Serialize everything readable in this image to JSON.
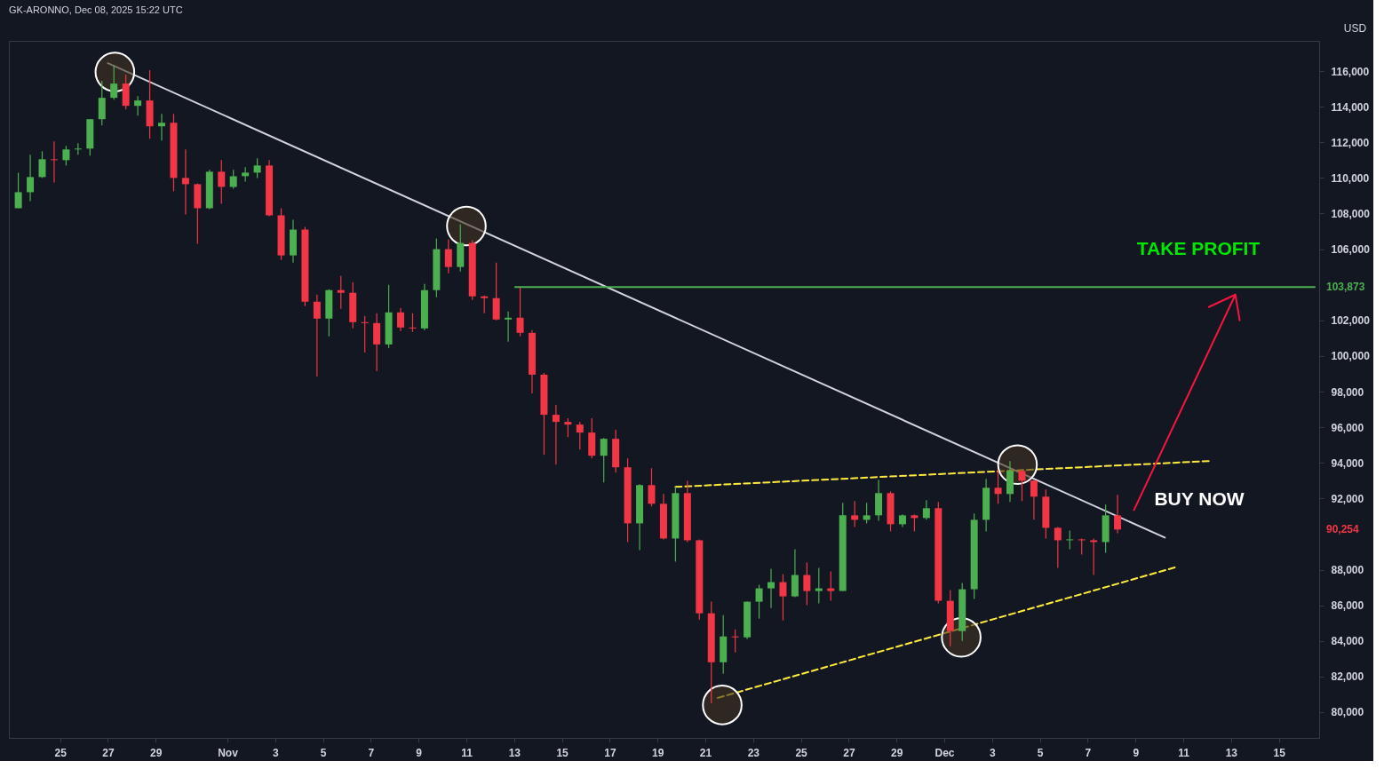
{
  "chart_data": {
    "type": "candlestick",
    "title": "GK-ARONNO, Dec 08, 2025 15:22 UTC",
    "ylabel": "USD",
    "colors": [
      "#4caf50",
      "#4caf50",
      "#4caf50",
      "#f23645",
      "#4caf50",
      "#4caf50",
      "#4caf50",
      "#4caf50",
      "#4caf50",
      "#f23645",
      "#4caf50",
      "#f23645",
      "#4caf50",
      "#f23645",
      "#f23645",
      "#f23645",
      "#4caf50",
      "#f23645",
      "#4caf50",
      "#4caf50",
      "#4caf50",
      "#f23645",
      "#f23645",
      "#4caf50",
      "#f23645",
      "#f23645",
      "#4caf50",
      "#f23645",
      "#f23645",
      "#f23645",
      "#f23645",
      "#4caf50",
      "#f23645",
      "#f23645",
      "#4caf50",
      "#4caf50",
      "#f23645",
      "#4caf50",
      "#f23645",
      "#f23645",
      "#f23645",
      "#4caf50",
      "#f23645",
      "#f23645",
      "#f23645",
      "#f23645",
      "#f23645",
      "#f23645",
      "#f23645",
      "#4caf50",
      "#f23645",
      "#f23645",
      "#4caf50",
      "#f23645",
      "#f23645",
      "#4caf50",
      "#f23645",
      "#f23645",
      "#f23645",
      "#4caf50",
      "#f23645",
      "#4caf50",
      "#4caf50",
      "#4caf50",
      "#f23645",
      "#4caf50",
      "#f23645",
      "#4caf50",
      "#f23645",
      "#4caf50",
      "#f23645",
      "#4caf50",
      "#4caf50",
      "#f23645",
      "#4caf50",
      "#f23645",
      "#4caf50",
      "#f23645",
      "#f23645",
      "#4caf50",
      "#4caf50",
      "#4caf50",
      "#f23645",
      "#4caf50",
      "#f23645",
      "#f23645",
      "#f23645",
      "#f23645",
      "#4caf50",
      "#f23645",
      "#f23645",
      "#4caf50",
      "#f23645"
    ],
    "x": [
      "2025-10-23T06:00",
      "2025-10-23T18:00",
      "2025-10-24T06:00",
      "2025-10-24T18:00",
      "2025-10-25T06:00",
      "2025-10-25T18:00",
      "2025-10-26T06:00",
      "2025-10-26T18:00",
      "2025-10-27T06:00",
      "2025-10-27T18:00",
      "2025-10-28T06:00",
      "2025-10-28T18:00",
      "2025-10-29T06:00",
      "2025-10-29T18:00",
      "2025-10-30T06:00",
      "2025-10-30T18:00",
      "2025-10-31T06:00",
      "2025-10-31T18:00",
      "2025-11-01T06:00",
      "2025-11-01T18:00",
      "2025-11-02T06:00",
      "2025-11-02T18:00",
      "2025-11-03T06:00",
      "2025-11-03T18:00",
      "2025-11-04T06:00",
      "2025-11-04T18:00",
      "2025-11-05T06:00",
      "2025-11-05T18:00",
      "2025-11-06T06:00",
      "2025-11-06T18:00",
      "2025-11-07T06:00",
      "2025-11-07T18:00",
      "2025-11-08T06:00",
      "2025-11-08T18:00",
      "2025-11-09T06:00",
      "2025-11-09T18:00",
      "2025-11-10T06:00",
      "2025-11-10T18:00",
      "2025-11-11T06:00",
      "2025-11-11T18:00",
      "2025-11-12T06:00",
      "2025-11-12T18:00",
      "2025-11-13T06:00",
      "2025-11-13T18:00",
      "2025-11-14T06:00",
      "2025-11-14T18:00",
      "2025-11-15T06:00",
      "2025-11-15T18:00",
      "2025-11-16T06:00",
      "2025-11-16T18:00",
      "2025-11-17T06:00",
      "2025-11-17T18:00",
      "2025-11-18T06:00",
      "2025-11-18T18:00",
      "2025-11-19T06:00",
      "2025-11-19T18:00",
      "2025-11-20T06:00",
      "2025-11-20T18:00",
      "2025-11-21T06:00",
      "2025-11-21T18:00",
      "2025-11-22T06:00",
      "2025-11-22T18:00",
      "2025-11-23T06:00",
      "2025-11-23T18:00",
      "2025-11-24T06:00",
      "2025-11-24T18:00",
      "2025-11-25T06:00",
      "2025-11-25T18:00",
      "2025-11-26T06:00",
      "2025-11-26T18:00",
      "2025-11-27T06:00",
      "2025-11-27T18:00",
      "2025-11-28T06:00",
      "2025-11-28T18:00",
      "2025-11-29T06:00",
      "2025-11-29T18:00",
      "2025-11-30T06:00",
      "2025-11-30T18:00",
      "2025-12-01T06:00",
      "2025-12-01T18:00",
      "2025-12-02T06:00",
      "2025-12-02T18:00",
      "2025-12-03T06:00",
      "2025-12-03T18:00",
      "2025-12-04T06:00",
      "2025-12-04T18:00",
      "2025-12-05T06:00",
      "2025-12-05T18:00",
      "2025-12-06T06:00",
      "2025-12-06T18:00",
      "2025-12-07T06:00",
      "2025-12-07T18:00",
      "2025-12-08T06:00"
    ],
    "ohlc": [
      [
        108300,
        110300,
        108300,
        109200
      ],
      [
        109200,
        111300,
        108700,
        110050
      ],
      [
        110050,
        111500,
        110000,
        111050
      ],
      [
        111050,
        112050,
        109750,
        111000
      ],
      [
        111000,
        111800,
        110700,
        111600
      ],
      [
        111600,
        111950,
        111300,
        111650
      ],
      [
        111650,
        113300,
        111250,
        113300
      ],
      [
        113300,
        115450,
        112950,
        114500
      ],
      [
        114500,
        116300,
        114400,
        115300
      ],
      [
        115300,
        115800,
        113850,
        114050
      ],
      [
        114050,
        114600,
        113500,
        114350
      ],
      [
        114350,
        116050,
        112200,
        112900
      ],
      [
        112900,
        113600,
        112100,
        113100
      ],
      [
        113100,
        113600,
        109250,
        110000
      ],
      [
        110000,
        111600,
        107950,
        109650
      ],
      [
        109650,
        109700,
        106300,
        108300
      ],
      [
        108300,
        110450,
        108250,
        110350
      ],
      [
        110350,
        111000,
        108550,
        109500
      ],
      [
        109500,
        110450,
        109400,
        110100
      ],
      [
        110100,
        110600,
        109800,
        110300
      ],
      [
        110300,
        111100,
        110000,
        110700
      ],
      [
        110700,
        111000,
        107850,
        107900
      ],
      [
        107900,
        108300,
        105400,
        105650
      ],
      [
        105650,
        107650,
        105250,
        107100
      ],
      [
        107100,
        107250,
        102800,
        103050
      ],
      [
        103050,
        103450,
        98850,
        102100
      ],
      [
        102100,
        103750,
        101100,
        103700
      ],
      [
        103700,
        104500,
        102650,
        103550
      ],
      [
        103550,
        104150,
        101550,
        101900
      ],
      [
        101900,
        102250,
        100200,
        101850
      ],
      [
        101850,
        102400,
        99150,
        100650
      ],
      [
        100650,
        104000,
        100450,
        102450
      ],
      [
        102450,
        102700,
        101400,
        101600
      ],
      [
        101600,
        102400,
        101350,
        101550
      ],
      [
        101550,
        104050,
        101450,
        103700
      ],
      [
        103700,
        106600,
        103300,
        106000
      ],
      [
        106000,
        106550,
        104650,
        105000
      ],
      [
        105000,
        107400,
        104750,
        106350
      ],
      [
        106350,
        106500,
        103150,
        103350
      ],
      [
        103350,
        103400,
        102400,
        103250
      ],
      [
        103250,
        105250,
        102000,
        102050
      ],
      [
        102050,
        102500,
        100800,
        102150
      ],
      [
        102150,
        103850,
        101100,
        101300
      ],
      [
        101300,
        101450,
        97900,
        98950
      ],
      [
        98950,
        99050,
        94450,
        96700
      ],
      [
        96700,
        97250,
        93900,
        96300
      ],
      [
        96300,
        96500,
        95450,
        96150
      ],
      [
        96150,
        96300,
        94750,
        95700
      ],
      [
        95700,
        96500,
        94250,
        94400
      ],
      [
        94400,
        95400,
        92900,
        95350
      ],
      [
        95350,
        95850,
        93450,
        93750
      ],
      [
        93750,
        94250,
        89550,
        90600
      ],
      [
        90600,
        92800,
        89100,
        92750
      ],
      [
        92750,
        93700,
        91550,
        91700
      ],
      [
        91700,
        92250,
        89700,
        89750
      ],
      [
        89750,
        92650,
        88450,
        92300
      ],
      [
        92300,
        93000,
        89550,
        89650
      ],
      [
        89650,
        89700,
        85200,
        85550
      ],
      [
        85550,
        86200,
        80500,
        82800
      ],
      [
        82800,
        85450,
        82150,
        84250
      ],
      [
        84250,
        84650,
        83350,
        84200
      ],
      [
        84200,
        86200,
        84100,
        86200
      ],
      [
        86200,
        87150,
        85250,
        86950
      ],
      [
        86950,
        88050,
        85850,
        87300
      ],
      [
        87300,
        87750,
        85150,
        86500
      ],
      [
        86500,
        89150,
        86450,
        87700
      ],
      [
        87700,
        88400,
        86000,
        86800
      ],
      [
        86800,
        88100,
        86100,
        86950
      ],
      [
        86950,
        87900,
        86250,
        86800
      ],
      [
        86800,
        91750,
        86800,
        91050
      ],
      [
        91050,
        91850,
        90400,
        90800
      ],
      [
        90800,
        91750,
        90600,
        91050
      ],
      [
        91050,
        93050,
        90750,
        92300
      ],
      [
        92300,
        92400,
        90150,
        90550
      ],
      [
        90550,
        91100,
        90400,
        91050
      ],
      [
        91050,
        91100,
        90150,
        90900
      ],
      [
        90900,
        91900,
        90800,
        91450
      ],
      [
        91450,
        91800,
        86100,
        86250
      ],
      [
        86250,
        86850,
        83700,
        84550
      ],
      [
        84550,
        87250,
        84000,
        86900
      ],
      [
        86900,
        91150,
        86350,
        90800
      ],
      [
        90800,
        93100,
        90150,
        92600
      ],
      [
        92600,
        93600,
        91700,
        92250
      ],
      [
        92250,
        94100,
        91800,
        93550
      ],
      [
        93550,
        93600,
        91850,
        93000
      ],
      [
        93000,
        93050,
        90800,
        92100
      ],
      [
        92100,
        92500,
        89750,
        90350
      ],
      [
        90350,
        90400,
        88100,
        89650
      ],
      [
        89650,
        90200,
        89150,
        89700
      ],
      [
        89700,
        89750,
        88850,
        89650
      ],
      [
        89650,
        89750,
        87700,
        89550
      ],
      [
        89550,
        91650,
        88950,
        91050
      ],
      [
        91050,
        92200,
        90050,
        90254
      ]
    ],
    "series": [
      {
        "type": "line",
        "color": "#d1d4dc",
        "line_style": "solid",
        "x": [
          "2025-10-27T00:00",
          "2025-12-10T05:30"
        ],
        "values": [
          116450,
          89800
        ]
      },
      {
        "type": "line",
        "color": "#ffeb3b",
        "line_style": "dashed",
        "x": [
          "2025-11-19T18:00",
          "2025-12-12T01:40"
        ],
        "values": [
          92650,
          94100
        ]
      },
      {
        "type": "line",
        "color": "#ffeb3b",
        "line_style": "dashed",
        "x": [
          "2025-11-21T12:30",
          "2025-12-10T17:00"
        ],
        "values": [
          80800,
          88150
        ]
      },
      {
        "type": "line",
        "color": "#4caf50",
        "line_style": "solid",
        "x": [
          "2025-11-13T01:00",
          "2025-12-16T12:00"
        ],
        "values": [
          103873,
          103873
        ]
      },
      {
        "type": "line",
        "color": "#f7153f",
        "line_style": "solid",
        "x": [
          "2025-12-08T22:30",
          "2025-12-13T04:20",
          "2025-12-12T01:40",
          "2025-12-13T04:20",
          "2025-12-13T08:40"
        ],
        "values": [
          91350,
          103450,
          102750,
          103450,
          102000
        ]
      },
      {
        "type": "scatter",
        "color": "#433221",
        "marker": "circle",
        "x": [
          "2025-10-27T07:00",
          "2025-11-11T00:00",
          "2025-11-21T17:00",
          "2025-12-01T17:00",
          "2025-12-04T01:30"
        ],
        "values": [
          115950,
          107300,
          80400,
          84200,
          93900
        ]
      }
    ],
    "annotations": [
      "TAKE PROFIT",
      "BUY NOW",
      "103,873",
      "90,254"
    ],
    "xlim": [
      "2025-10-23T01:00",
      "2025-12-16T12:00"
    ],
    "xticks": [
      {
        "value": "2025-10-25",
        "label": "25"
      },
      {
        "value": "2025-10-27",
        "label": "27"
      },
      {
        "value": "2025-10-29",
        "label": "29"
      },
      {
        "value": "2025-11-01",
        "label": "Nov"
      },
      {
        "value": "2025-11-03",
        "label": "3"
      },
      {
        "value": "2025-11-05",
        "label": "5"
      },
      {
        "value": "2025-11-07",
        "label": "7"
      },
      {
        "value": "2025-11-09",
        "label": "9"
      },
      {
        "value": "2025-11-11",
        "label": "11"
      },
      {
        "value": "2025-11-13",
        "label": "13"
      },
      {
        "value": "2025-11-15",
        "label": "15"
      },
      {
        "value": "2025-11-17",
        "label": "17"
      },
      {
        "value": "2025-11-19",
        "label": "19"
      },
      {
        "value": "2025-11-21",
        "label": "21"
      },
      {
        "value": "2025-11-23",
        "label": "23"
      },
      {
        "value": "2025-11-25",
        "label": "25"
      },
      {
        "value": "2025-11-27",
        "label": "27"
      },
      {
        "value": "2025-11-29",
        "label": "29"
      },
      {
        "value": "2025-12-01",
        "label": "Dec"
      },
      {
        "value": "2025-12-03",
        "label": "3"
      },
      {
        "value": "2025-12-05",
        "label": "5"
      },
      {
        "value": "2025-12-07",
        "label": "7"
      },
      {
        "value": "2025-12-09",
        "label": "9"
      },
      {
        "value": "2025-12-11",
        "label": "11"
      },
      {
        "value": "2025-12-13",
        "label": "13"
      },
      {
        "value": "2025-12-15",
        "label": "15"
      }
    ],
    "ylim": [
      78550,
      117700
    ],
    "yticks": [
      {
        "value": 80000,
        "label": "80,000"
      },
      {
        "value": 82000,
        "label": "82,000"
      },
      {
        "value": 84000,
        "label": "84,000"
      },
      {
        "value": 86000,
        "label": "86,000"
      },
      {
        "value": 88000,
        "label": "88,000"
      },
      {
        "value": 92000,
        "label": "92,000"
      },
      {
        "value": 94000,
        "label": "94,000"
      },
      {
        "value": 96000,
        "label": "96,000"
      },
      {
        "value": 98000,
        "label": "98,000"
      },
      {
        "value": 100000,
        "label": "100,000"
      },
      {
        "value": 102000,
        "label": "102,000"
      },
      {
        "value": 106000,
        "label": "106,000"
      },
      {
        "value": 108000,
        "label": "108,000"
      },
      {
        "value": 110000,
        "label": "110,000"
      },
      {
        "value": 112000,
        "label": "112,000"
      },
      {
        "value": 114000,
        "label": "114,000"
      },
      {
        "value": 116000,
        "label": "116,000"
      }
    ],
    "grid": false
  }
}
